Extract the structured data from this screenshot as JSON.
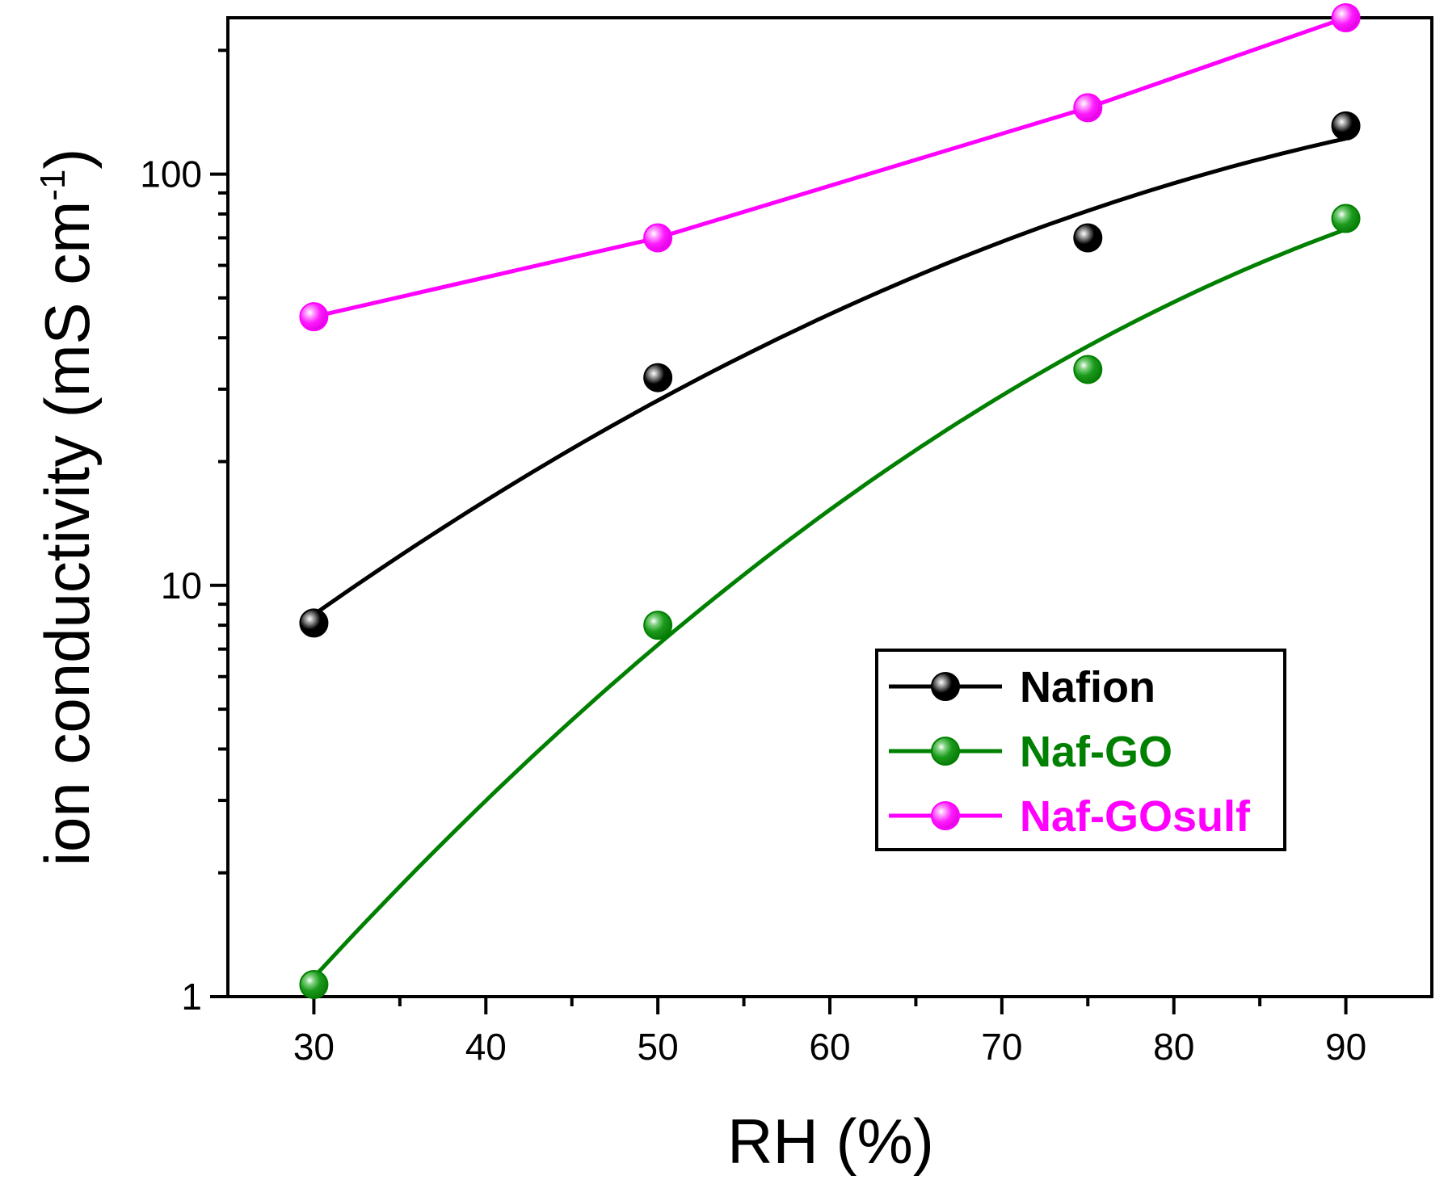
{
  "chart_data": {
    "type": "line",
    "title": "",
    "xlabel": "RH (%)",
    "ylabel_main": "ion conductivity (mS cm",
    "ylabel_sup": "-1",
    "ylabel_close": ")",
    "yscale": "log",
    "xlim": [
      25,
      95
    ],
    "ylim": [
      1,
      240
    ],
    "x_ticks": [
      30,
      40,
      50,
      60,
      70,
      80,
      90
    ],
    "x_tick_labels": [
      "30",
      "40",
      "50",
      "60",
      "70",
      "80",
      "90"
    ],
    "y_ticks": [
      1,
      10,
      100
    ],
    "y_tick_labels": [
      "1",
      "10",
      "100"
    ],
    "legend_position": "lower-right",
    "series": [
      {
        "name": "Nafion",
        "color": "#000000",
        "x": [
          30,
          50,
          75,
          90
        ],
        "values": [
          8.1,
          32,
          70,
          131
        ],
        "fit": "smooth"
      },
      {
        "name": "Naf-GO",
        "color": "#008000",
        "x": [
          30,
          50,
          75,
          90
        ],
        "values": [
          1.07,
          8.0,
          33.5,
          78
        ],
        "fit": "smooth"
      },
      {
        "name": "Naf-GOsulf",
        "color": "#ff00ff",
        "x": [
          30,
          50,
          75,
          90
        ],
        "values": [
          45,
          70,
          145,
          240
        ],
        "fit": "line"
      }
    ]
  }
}
